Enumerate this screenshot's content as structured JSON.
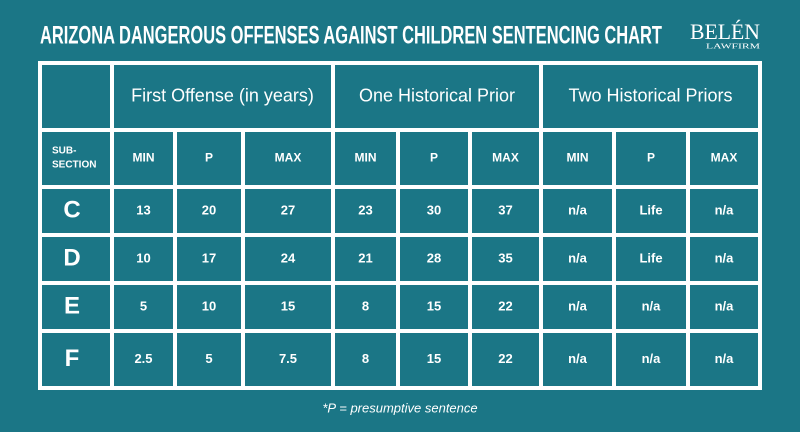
{
  "header": {
    "title": "ARIZONA DANGEROUS OFFENSES AGAINST CHILDREN SENTENCING CHART"
  },
  "logo": {
    "name": "BELÉN",
    "sub": "LAWFIRM"
  },
  "table": {
    "groups": [
      "First Offense (in years)",
      "One Historical Prior",
      "Two Historical Priors"
    ],
    "row_header": [
      "SUB-",
      "SECTION"
    ],
    "columns": [
      "MIN",
      "P",
      "MAX",
      "MIN",
      "P",
      "MAX",
      "MIN",
      "P",
      "MAX"
    ],
    "rows": [
      [
        "C",
        13,
        20,
        27,
        23,
        30,
        37,
        "n/a",
        "Life",
        "n/a"
      ],
      [
        "D",
        10,
        17,
        24,
        21,
        28,
        35,
        "n/a",
        "Life",
        "n/a"
      ],
      [
        "E",
        5,
        10,
        15,
        8,
        15,
        22,
        "n/a",
        "n/a",
        "n/a"
      ],
      [
        "F",
        2.5,
        5,
        7.5,
        8,
        15,
        22,
        "n/a",
        "n/a",
        "n/a"
      ]
    ]
  },
  "footnote": "*P = presumptive sentence"
}
